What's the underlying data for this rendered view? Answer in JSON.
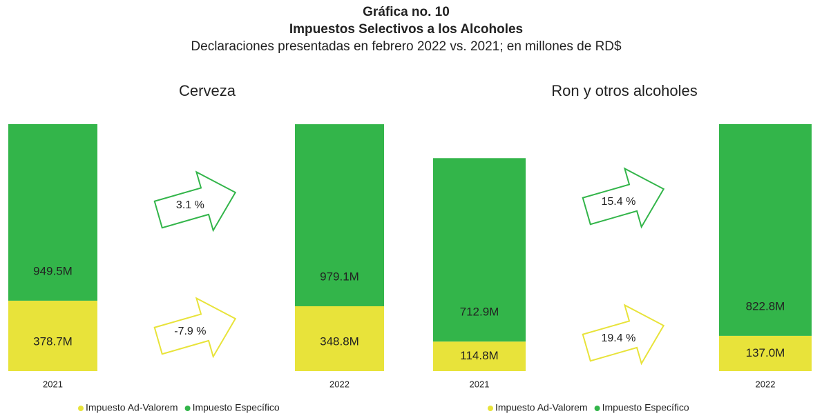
{
  "header": {
    "title": "Gráfica no. 10",
    "subtitle": "Impuestos Selectivos a los Alcoholes",
    "note": "Declaraciones presentadas en febrero 2022 vs. 2021; en millones de RD$"
  },
  "chart_data": [
    {
      "type": "bar",
      "stacked": true,
      "title": "Cerveza",
      "categories": [
        "2021",
        "2022"
      ],
      "series": [
        {
          "name": "Impuesto Ad-Valorem",
          "color": "#e8e33a",
          "values": [
            378.7,
            348.8
          ],
          "value_labels": [
            "378.7M",
            "348.8M"
          ],
          "change": -7.9,
          "change_label": "-7.9 %"
        },
        {
          "name": "Impuesto Específico",
          "color": "#33b54a",
          "values": [
            949.5,
            979.1
          ],
          "value_labels": [
            "949.5M",
            "979.1M"
          ],
          "change": 3.1,
          "change_label": "3.1 %"
        }
      ]
    },
    {
      "type": "bar",
      "stacked": true,
      "title": "Ron y otros alcoholes",
      "categories": [
        "2021",
        "2022"
      ],
      "series": [
        {
          "name": "Impuesto Ad-Valorem",
          "color": "#e8e33a",
          "values": [
            114.8,
            137.0
          ],
          "value_labels": [
            "114.8M",
            "137.0M"
          ],
          "change": 19.4,
          "change_label": "19.4 %"
        },
        {
          "name": "Impuesto Específico",
          "color": "#33b54a",
          "values": [
            712.9,
            822.8
          ],
          "value_labels": [
            "712.9M",
            "822.8M"
          ],
          "change": 15.4,
          "change_label": "15.4 %"
        }
      ]
    }
  ]
}
